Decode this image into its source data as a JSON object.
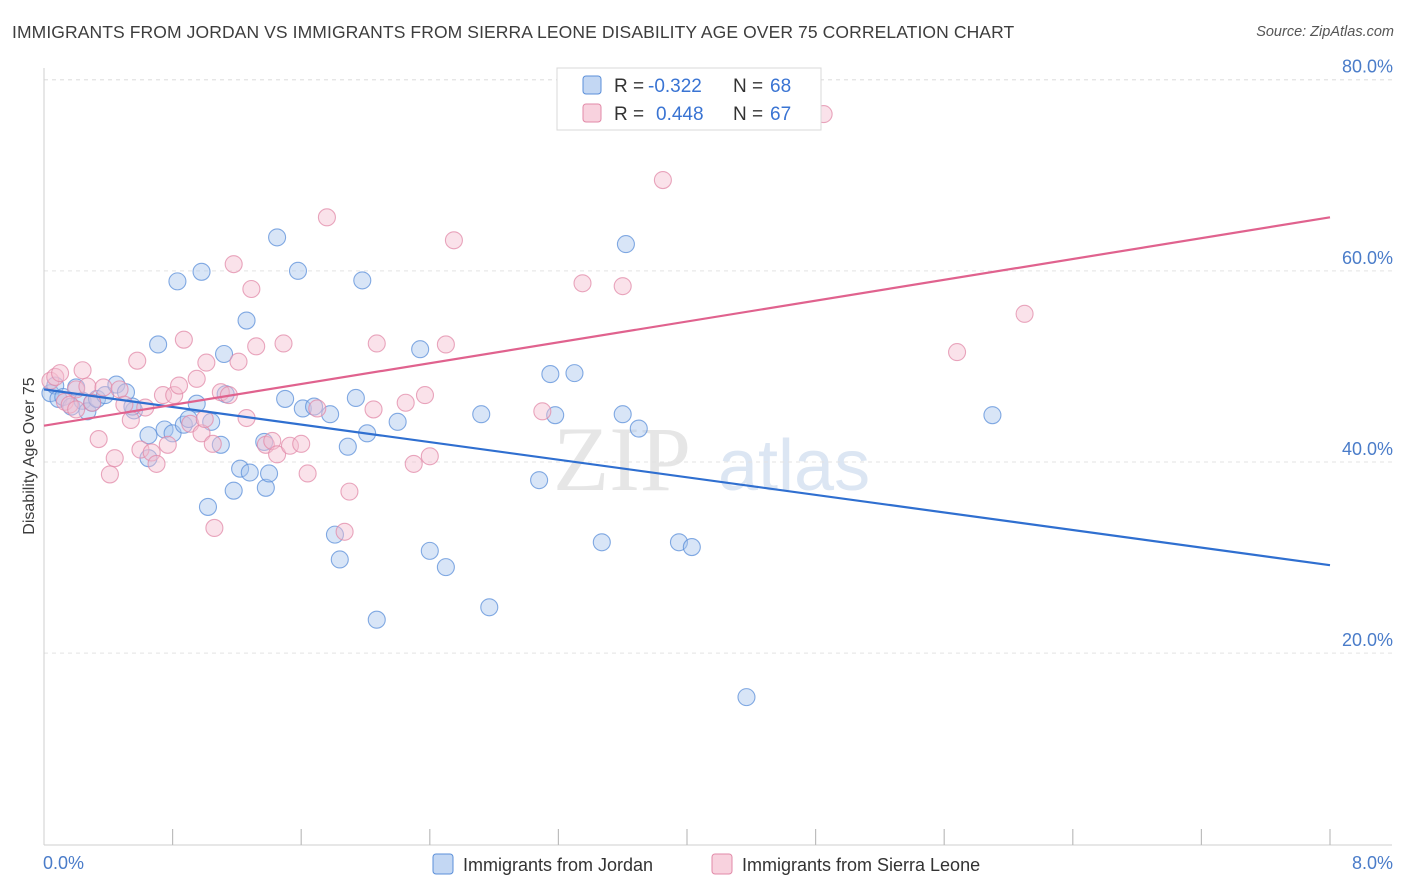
{
  "title": "IMMIGRANTS FROM JORDAN VS IMMIGRANTS FROM SIERRA LEONE DISABILITY AGE OVER 75 CORRELATION CHART",
  "source": "Source: ZipAtlas.com",
  "watermark": {
    "zip": "ZIP",
    "atlas": "atlas"
  },
  "colors": {
    "blue": "#5b8fd9",
    "blue_fill": "#a9c6ee",
    "blue_line": "#2f6fd0",
    "pink": "#e28aa8",
    "pink_fill": "#f5bfd0",
    "pink_line": "#e0628e",
    "tick_label": "#4a7cc9",
    "grid": "#dddddd"
  },
  "legend": {
    "rows": [
      {
        "r_label": "R = ",
        "r_value": "-0.322",
        "n_label": "N = ",
        "n_value": "68"
      },
      {
        "r_label": "R = ",
        "r_value": "0.448",
        "n_label": "N = ",
        "n_value": "67"
      }
    ]
  },
  "bottom_legend": [
    "Immigrants from Jordan",
    "Immigrants from Sierra Leone"
  ],
  "chart_data": {
    "type": "scatter",
    "title": "IMMIGRANTS FROM JORDAN VS IMMIGRANTS FROM SIERRA LEONE DISABILITY AGE OVER 75 CORRELATION CHART",
    "xlabel": "",
    "ylabel": "Disability Age Over 75",
    "xlim": [
      0,
      8
    ],
    "ylim": [
      3,
      84
    ],
    "x_tick_labels": [
      "0.0%",
      "8.0%"
    ],
    "y_ticks": [
      20,
      40,
      60,
      80
    ],
    "y_tick_labels": [
      "20.0%",
      "40.0%",
      "60.0%",
      "80.0%"
    ],
    "grid": true,
    "legend_position": "top-center",
    "series": [
      {
        "name": "Immigrants from Jordan",
        "color": "#5b8fd9",
        "r": -0.322,
        "n": 68,
        "trend": {
          "x": [
            0,
            8
          ],
          "y": [
            47.6,
            29.2
          ]
        },
        "points": [
          [
            0.04,
            47.2
          ],
          [
            0.07,
            48.0
          ],
          [
            0.09,
            46.6
          ],
          [
            0.12,
            46.8
          ],
          [
            0.17,
            45.8
          ],
          [
            0.2,
            47.8
          ],
          [
            0.24,
            46.4
          ],
          [
            0.27,
            45.3
          ],
          [
            0.3,
            46.2
          ],
          [
            0.33,
            46.6
          ],
          [
            0.38,
            47.0
          ],
          [
            0.45,
            48.1
          ],
          [
            0.51,
            47.3
          ],
          [
            0.56,
            45.4
          ],
          [
            0.65,
            42.8
          ],
          [
            0.65,
            40.4
          ],
          [
            0.71,
            52.3
          ],
          [
            0.75,
            43.4
          ],
          [
            0.8,
            43.0
          ],
          [
            0.83,
            58.9
          ],
          [
            0.87,
            43.9
          ],
          [
            0.9,
            44.5
          ],
          [
            0.95,
            46.1
          ],
          [
            0.98,
            59.9
          ],
          [
            1.02,
            35.3
          ],
          [
            1.04,
            44.2
          ],
          [
            1.12,
            51.3
          ],
          [
            1.13,
            47.1
          ],
          [
            1.18,
            37.0
          ],
          [
            1.22,
            39.3
          ],
          [
            1.26,
            54.8
          ],
          [
            1.28,
            38.9
          ],
          [
            1.37,
            42.1
          ],
          [
            1.38,
            37.3
          ],
          [
            1.4,
            38.8
          ],
          [
            1.45,
            63.5
          ],
          [
            1.5,
            46.6
          ],
          [
            1.58,
            60.0
          ],
          [
            1.61,
            45.6
          ],
          [
            1.68,
            45.8
          ],
          [
            1.78,
            45.0
          ],
          [
            1.81,
            32.4
          ],
          [
            1.84,
            29.8
          ],
          [
            1.89,
            41.6
          ],
          [
            1.94,
            46.7
          ],
          [
            1.98,
            59.0
          ],
          [
            2.01,
            43.0
          ],
          [
            2.07,
            23.5
          ],
          [
            2.2,
            44.2
          ],
          [
            2.34,
            51.8
          ],
          [
            2.4,
            30.7
          ],
          [
            2.5,
            29.0
          ],
          [
            2.72,
            45.0
          ],
          [
            2.77,
            24.8
          ],
          [
            3.08,
            38.1
          ],
          [
            3.15,
            49.2
          ],
          [
            3.18,
            44.9
          ],
          [
            3.3,
            49.3
          ],
          [
            3.47,
            31.6
          ],
          [
            3.6,
            45.0
          ],
          [
            3.62,
            62.8
          ],
          [
            3.7,
            43.5
          ],
          [
            3.95,
            31.6
          ],
          [
            4.03,
            31.1
          ],
          [
            4.37,
            15.4
          ],
          [
            5.9,
            44.9
          ],
          [
            0.55,
            45.8
          ],
          [
            1.1,
            41.8
          ]
        ]
      },
      {
        "name": "Immigrants from Sierra Leone",
        "color": "#e28aa8",
        "r": 0.448,
        "n": 67,
        "trend": {
          "x": [
            0,
            8
          ],
          "y": [
            43.8,
            65.6
          ]
        },
        "points": [
          [
            0.04,
            48.5
          ],
          [
            0.07,
            48.9
          ],
          [
            0.1,
            49.3
          ],
          [
            0.13,
            46.3
          ],
          [
            0.16,
            46.0
          ],
          [
            0.2,
            47.6
          ],
          [
            0.24,
            49.6
          ],
          [
            0.27,
            47.9
          ],
          [
            0.3,
            46.2
          ],
          [
            0.34,
            42.4
          ],
          [
            0.37,
            47.8
          ],
          [
            0.41,
            38.7
          ],
          [
            0.44,
            40.4
          ],
          [
            0.47,
            47.6
          ],
          [
            0.5,
            46.0
          ],
          [
            0.54,
            44.4
          ],
          [
            0.58,
            50.6
          ],
          [
            0.6,
            41.3
          ],
          [
            0.63,
            45.7
          ],
          [
            0.67,
            41.0
          ],
          [
            0.7,
            39.8
          ],
          [
            0.74,
            47.0
          ],
          [
            0.77,
            41.8
          ],
          [
            0.81,
            47.0
          ],
          [
            0.84,
            48.0
          ],
          [
            0.87,
            52.8
          ],
          [
            0.91,
            44.0
          ],
          [
            0.95,
            48.7
          ],
          [
            0.98,
            43.0
          ],
          [
            1.01,
            50.4
          ],
          [
            1.05,
            41.9
          ],
          [
            1.06,
            33.1
          ],
          [
            1.1,
            47.3
          ],
          [
            1.15,
            47.0
          ],
          [
            1.18,
            60.7
          ],
          [
            1.21,
            50.5
          ],
          [
            1.26,
            44.6
          ],
          [
            1.29,
            58.1
          ],
          [
            1.32,
            52.1
          ],
          [
            1.38,
            41.8
          ],
          [
            1.42,
            42.2
          ],
          [
            1.45,
            40.8
          ],
          [
            1.49,
            52.4
          ],
          [
            1.53,
            41.7
          ],
          [
            1.6,
            41.9
          ],
          [
            1.64,
            38.8
          ],
          [
            1.7,
            45.6
          ],
          [
            1.76,
            65.6
          ],
          [
            1.87,
            32.7
          ],
          [
            1.9,
            36.9
          ],
          [
            2.05,
            45.5
          ],
          [
            2.07,
            52.4
          ],
          [
            2.25,
            46.2
          ],
          [
            2.3,
            39.8
          ],
          [
            2.37,
            47.0
          ],
          [
            2.4,
            40.6
          ],
          [
            2.5,
            52.3
          ],
          [
            2.55,
            63.2
          ],
          [
            3.1,
            45.3
          ],
          [
            3.35,
            58.7
          ],
          [
            3.6,
            58.4
          ],
          [
            3.85,
            69.5
          ],
          [
            4.85,
            76.4
          ],
          [
            5.68,
            51.5
          ],
          [
            6.1,
            55.5
          ],
          [
            0.2,
            45.5
          ],
          [
            1.0,
            44.5
          ]
        ]
      }
    ]
  }
}
